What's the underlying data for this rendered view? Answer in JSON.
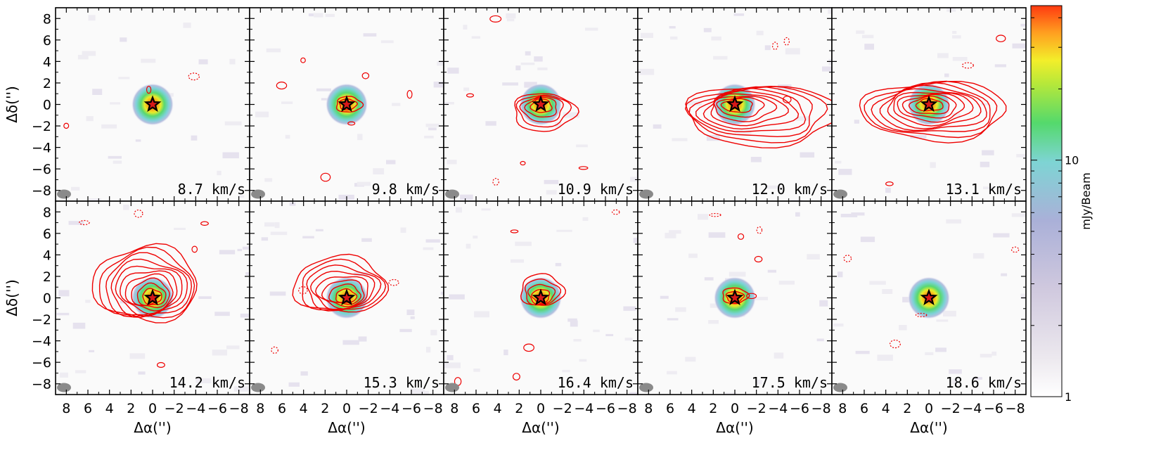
{
  "chart_data": {
    "type": "channel-map",
    "x_axis": {
      "label": "Δα('')",
      "range": [
        9,
        -9
      ],
      "ticks": [
        "8",
        "6",
        "4",
        "2",
        "0",
        "−2",
        "−4",
        "−6",
        "−8"
      ],
      "tick_values": [
        8,
        6,
        4,
        2,
        0,
        -2,
        -4,
        -6,
        -8
      ]
    },
    "y_axis": {
      "label": "Δδ('')",
      "range": [
        -9,
        9
      ],
      "ticks": [
        "8",
        "6",
        "4",
        "2",
        "0",
        "−2",
        "−4",
        "−6",
        "−8"
      ],
      "tick_values": [
        8,
        6,
        4,
        2,
        0,
        -2,
        -4,
        -6,
        -8
      ]
    },
    "colorbar": {
      "label": "mJy/Beam",
      "scale": "log",
      "range": [
        1,
        45
      ],
      "ticks": [
        "10",
        "1"
      ],
      "tick_values": [
        10,
        1
      ],
      "colormap": [
        "#ffffff",
        "#ece8ee",
        "#cfc8de",
        "#aab0d8",
        "#7ed4d4",
        "#54d96c",
        "#b6e83a",
        "#f3ee2a",
        "#ffa020",
        "#ff3a10"
      ]
    },
    "continuum_peak": {
      "x": 0,
      "y": 0
    },
    "source_marker": "star-icon",
    "contour_color": "#ee0000",
    "panels": [
      {
        "velocity": "8.7 km/s",
        "v": 8.7,
        "line_extent": 0,
        "offset": [
          0,
          0
        ],
        "elong": [
          1,
          1
        ]
      },
      {
        "velocity": "9.8 km/s",
        "v": 9.8,
        "line_extent": 0.8,
        "offset": [
          -0.2,
          0
        ],
        "elong": [
          1,
          0.8
        ]
      },
      {
        "velocity": "10.9 km/s",
        "v": 10.9,
        "line_extent": 2.0,
        "offset": [
          -0.3,
          -0.7
        ],
        "elong": [
          1.2,
          1
        ]
      },
      {
        "velocity": "12.0 km/s",
        "v": 12.0,
        "line_extent": 3.5,
        "offset": [
          -2.5,
          -1.0
        ],
        "elong": [
          1.8,
          1
        ]
      },
      {
        "velocity": "13.1 km/s",
        "v": 13.1,
        "line_extent": 3.8,
        "offset": [
          -0.5,
          -0.6
        ],
        "elong": [
          1.6,
          0.9
        ]
      },
      {
        "velocity": "14.2 km/s",
        "v": 14.2,
        "line_extent": 4.0,
        "offset": [
          0.6,
          1.3
        ],
        "elong": [
          1.1,
          1.1
        ]
      },
      {
        "velocity": "15.3 km/s",
        "v": 15.3,
        "line_extent": 3.2,
        "offset": [
          0.6,
          1.2
        ],
        "elong": [
          1.2,
          1.0
        ]
      },
      {
        "velocity": "16.4 km/s",
        "v": 16.4,
        "line_extent": 1.6,
        "offset": [
          -0.1,
          0.7
        ],
        "elong": [
          1,
          1
        ]
      },
      {
        "velocity": "17.5 km/s",
        "v": 17.5,
        "line_extent": 0.8,
        "offset": [
          0,
          0.2
        ],
        "elong": [
          1,
          0.8
        ]
      },
      {
        "velocity": "18.6 km/s",
        "v": 18.6,
        "line_extent": 0,
        "offset": [
          0,
          0
        ],
        "elong": [
          1,
          1
        ]
      }
    ]
  }
}
